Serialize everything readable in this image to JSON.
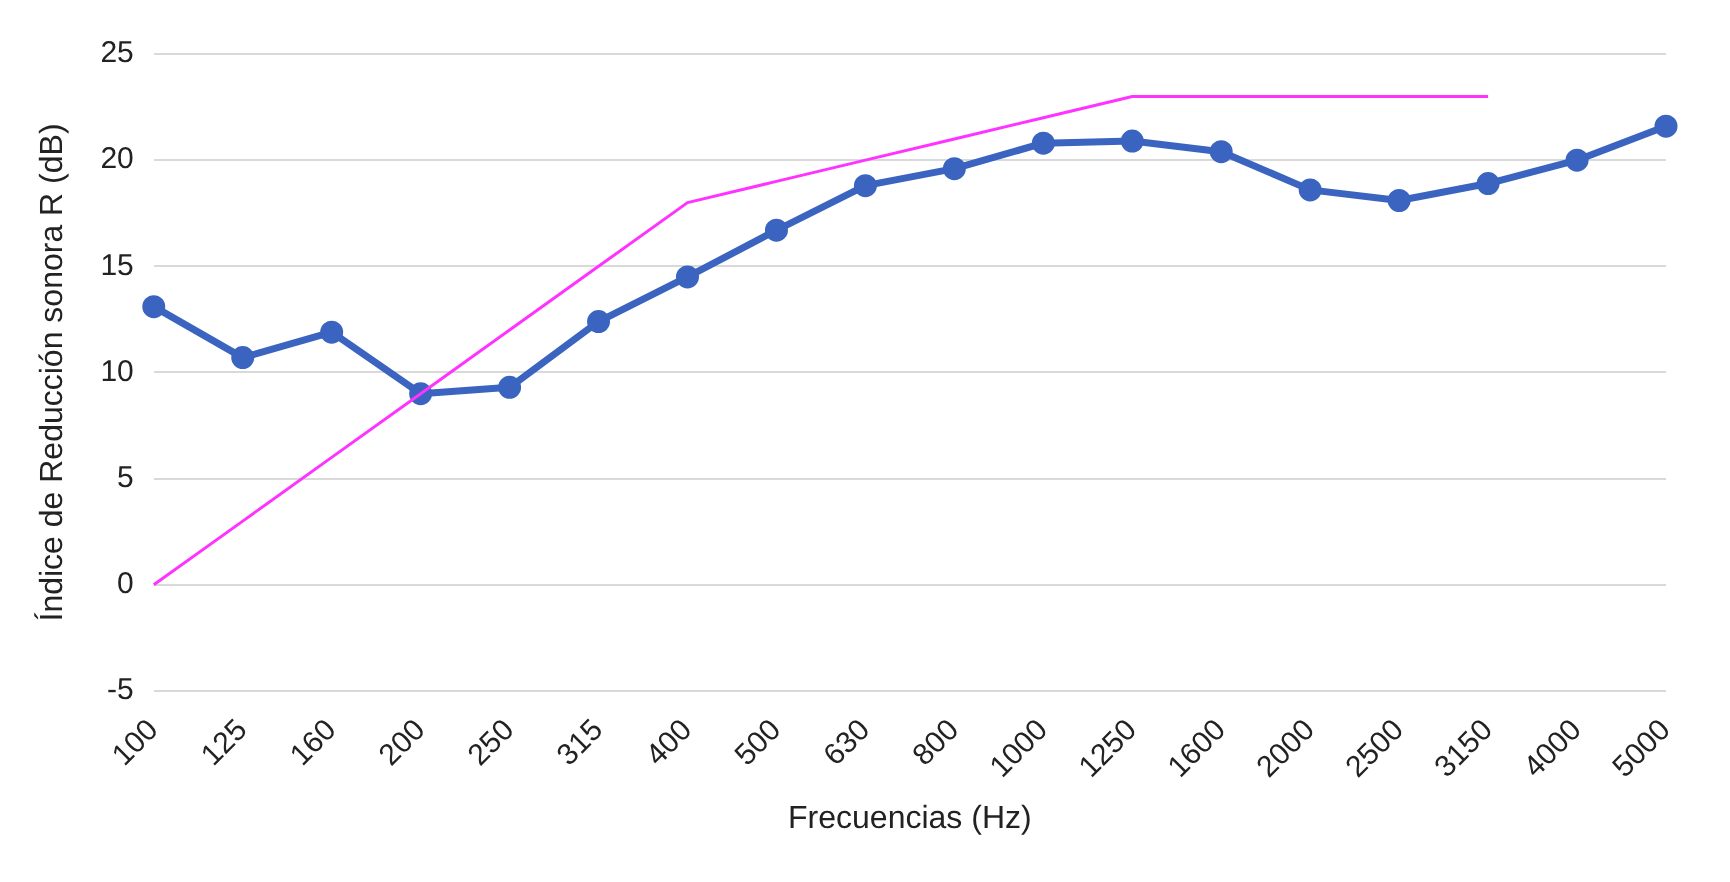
{
  "chart_data": {
    "type": "line",
    "xlabel": "Frecuencias (Hz)",
    "ylabel": "Índice de Reducción sonora R (dB)",
    "categories": [
      "100",
      "125",
      "160",
      "200",
      "250",
      "315",
      "400",
      "500",
      "630",
      "800",
      "1000",
      "1250",
      "1600",
      "2000",
      "2500",
      "3150",
      "4000",
      "5000"
    ],
    "series": [
      {
        "color": "#3a64c0",
        "marker": "circle",
        "values": [
          13.1,
          10.7,
          11.9,
          9.0,
          9.3,
          12.4,
          14.5,
          16.7,
          18.8,
          19.6,
          20.8,
          20.9,
          20.4,
          18.6,
          18.1,
          18.9,
          20.0,
          21.6
        ]
      },
      {
        "color": "#ff33ff",
        "marker": "none",
        "values": [
          0,
          3,
          6,
          9,
          12,
          15,
          18,
          19,
          20,
          21,
          22,
          23,
          23,
          23,
          23,
          23,
          null,
          null
        ]
      }
    ],
    "ylim": [
      -5,
      25
    ],
    "yticks": [
      -5,
      0,
      5,
      10,
      15,
      20,
      25
    ],
    "grid": "y",
    "legend": false
  }
}
